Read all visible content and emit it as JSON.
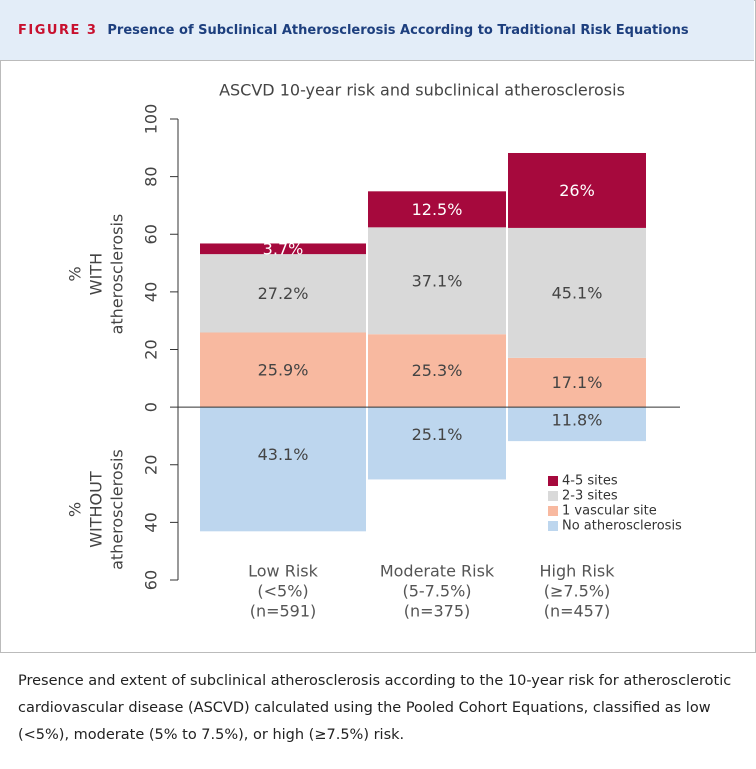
{
  "figure_label": "FIGURE 3",
  "figure_title": "Presence of Subclinical Atherosclerosis According to Traditional Risk Equations",
  "chart_data": {
    "type": "stacked_bar",
    "title": "ASCVD 10-year risk and subclinical atherosclerosis",
    "y_label_top": [
      "%",
      "WITH",
      "atherosclerosis"
    ],
    "y_label_bottom": [
      "%",
      "WITHOUT",
      "atherosclerosis"
    ],
    "categories": [
      [
        "Low Risk",
        "(<5%)",
        "(n=591)"
      ],
      [
        "Moderate Risk",
        "(5-7.5%)",
        "(n=375)"
      ],
      [
        "High Risk",
        "(≥7.5%)",
        "(n=457)"
      ]
    ],
    "series": [
      {
        "name": "4-5 sites",
        "color": "#a6093d",
        "label_color": "#ffffff",
        "values": [
          3.7,
          12.5,
          26
        ],
        "value_labels": [
          "3.7%",
          "12.5%",
          "26%"
        ]
      },
      {
        "name": "2-3 sites",
        "color": "#d9d9d9",
        "label_color": "#444444",
        "values": [
          27.2,
          37.1,
          45.1
        ],
        "value_labels": [
          "27.2%",
          "37.1%",
          "45.1%"
        ]
      },
      {
        "name": "1 vascular site",
        "color": "#f8b9a0",
        "label_color": "#444444",
        "values": [
          25.9,
          25.3,
          17.1
        ],
        "value_labels": [
          "25.9%",
          "25.3%",
          "17.1%"
        ]
      },
      {
        "name": "No atherosclerosis",
        "color": "#bdd6ee",
        "label_color": "#444444",
        "values": [
          -43.1,
          -25.1,
          -11.8
        ],
        "value_labels": [
          "43.1%",
          "25.1%",
          "11.8%"
        ]
      }
    ],
    "ylim": [
      -60,
      100
    ],
    "yticks": [
      {
        "value": -60,
        "label": "60"
      },
      {
        "value": -40,
        "label": "40"
      },
      {
        "value": -20,
        "label": "20"
      },
      0,
      20,
      40,
      60,
      80,
      100
    ]
  },
  "caption": "Presence and extent of subclinical atherosclerosis according to the 10-year risk for atherosclerotic cardiovascular disease (ASCVD) calculated using the Pooled Cohort Equations, classified as low (<5%), moderate (5% to 7.5%), or high (≥7.5%) risk."
}
